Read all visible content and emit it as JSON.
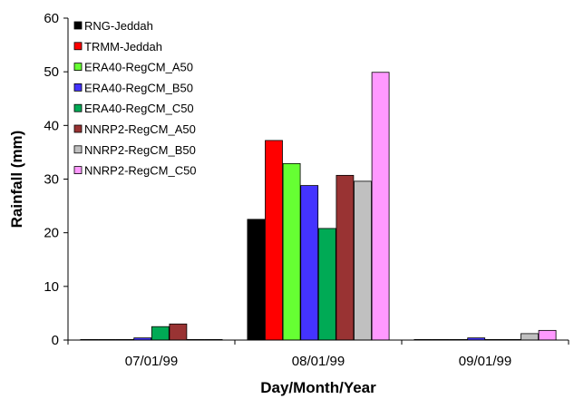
{
  "chart_data": {
    "type": "bar",
    "xlabel": "Day/Month/Year",
    "ylabel": "Rainfall (mm)",
    "ylim": [
      0,
      60
    ],
    "yticks": [
      0,
      10,
      20,
      30,
      40,
      50,
      60
    ],
    "grid": false,
    "legend_position": "top-left",
    "categories": [
      "07/01/99",
      "08/01/99",
      "09/01/99"
    ],
    "series": [
      {
        "name": "RNG-Jeddah",
        "color": "#000000",
        "values": [
          0.0,
          22.5,
          0.0
        ]
      },
      {
        "name": "TRMM-Jeddah",
        "color": "#ff0000",
        "values": [
          0.0,
          37.2,
          0.0
        ]
      },
      {
        "name": "ERA40-RegCM_A50",
        "color": "#66ff33",
        "values": [
          0.1,
          32.9,
          0.0
        ]
      },
      {
        "name": "ERA40-RegCM_B50",
        "color": "#4433ff",
        "values": [
          0.4,
          28.8,
          0.4
        ]
      },
      {
        "name": "ERA40-RegCM_C50",
        "color": "#00aa55",
        "values": [
          2.5,
          20.8,
          0.0
        ]
      },
      {
        "name": "NNRP2-RegCM_A50",
        "color": "#993333",
        "values": [
          3.0,
          30.7,
          0.0
        ]
      },
      {
        "name": "NNRP2-RegCM_B50",
        "color": "#c0c0c0",
        "values": [
          0.0,
          29.6,
          1.2
        ]
      },
      {
        "name": "NNRP2-RegCM_C50",
        "color": "#ff99ff",
        "values": [
          0.1,
          49.9,
          1.8
        ]
      }
    ]
  }
}
